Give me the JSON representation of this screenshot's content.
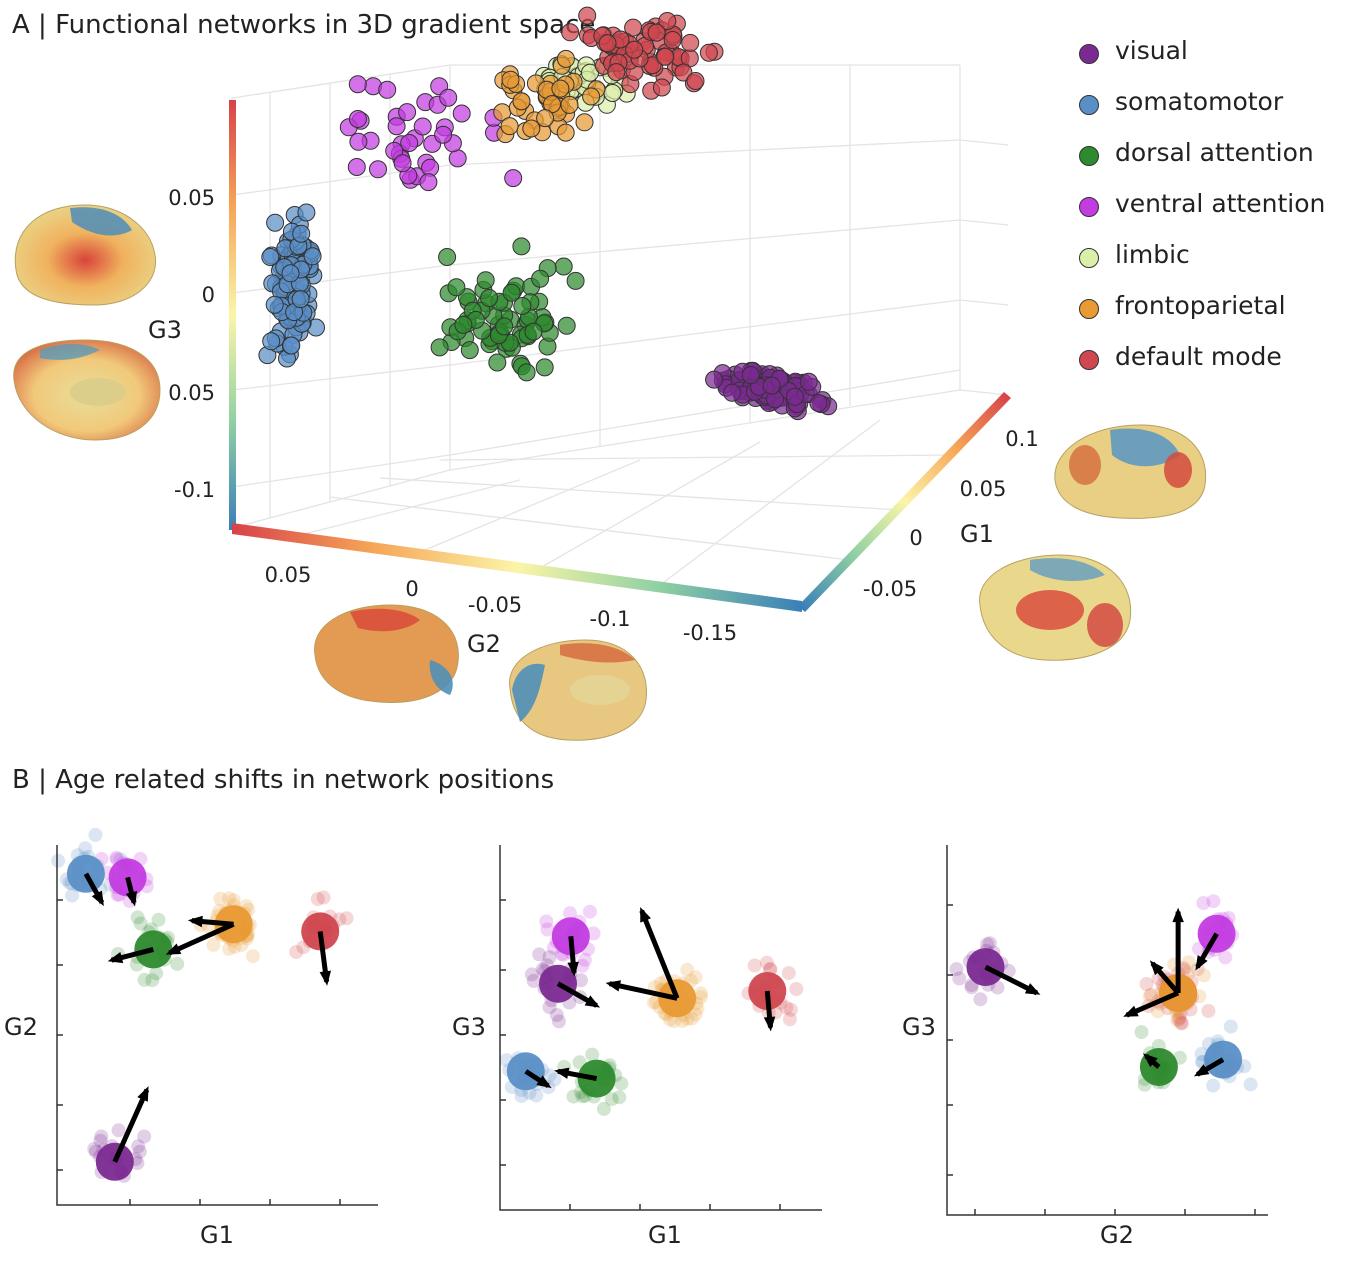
{
  "panel_a": {
    "title": "A |  Functional networks in 3D gradient space"
  },
  "panel_b": {
    "title": "B |  Age related shifts in network positions"
  },
  "legend": [
    {
      "label": "visual",
      "color": "#7b2a91"
    },
    {
      "label": "somatomotor",
      "color": "#5a8fc6"
    },
    {
      "label": "dorsal attention",
      "color": "#2e8a2e"
    },
    {
      "label": "ventral attention",
      "color": "#c23ce0"
    },
    {
      "label": "limbic",
      "color": "#dcefaa"
    },
    {
      "label": "frontoparietal",
      "color": "#e89a34"
    },
    {
      "label": "default mode",
      "color": "#d0474f"
    }
  ],
  "chart_data": [
    {
      "type": "scatter",
      "projection": "3d",
      "title": "Functional networks in 3D gradient space",
      "axes": {
        "G1": {
          "label": "G1",
          "ticks": [
            "0.1",
            "0.05",
            "0",
            "-0.05"
          ],
          "range": [
            -0.08,
            0.12
          ],
          "colormap": "Spectral"
        },
        "G2": {
          "label": "G2",
          "ticks": [
            "0.05",
            "0",
            "-0.05",
            "-0.1",
            "-0.15"
          ],
          "range": [
            0.08,
            -0.19
          ],
          "colormap": "Spectral"
        },
        "G3": {
          "label": "G3",
          "ticks": [
            "0.05",
            "0",
            "0.05",
            "-0.1"
          ],
          "range": [
            -0.13,
            0.1
          ],
          "colormap": "Spectral"
        }
      },
      "series": [
        {
          "name": "visual",
          "centroid": {
            "G1": -0.07,
            "G2": -0.17,
            "G3": -0.02
          },
          "n_points": 110
        },
        {
          "name": "somatomotor",
          "centroid": {
            "G1": -0.04,
            "G2": 0.07,
            "G3": -0.02
          },
          "n_points": 120
        },
        {
          "name": "dorsal attention",
          "centroid": {
            "G1": -0.01,
            "G2": -0.02,
            "G3": -0.04
          },
          "n_points": 70
        },
        {
          "name": "ventral attention",
          "centroid": {
            "G1": 0.0,
            "G2": 0.03,
            "G3": 0.05
          },
          "n_points": 40
        },
        {
          "name": "limbic",
          "centroid": {
            "G1": 0.03,
            "G2": -0.03,
            "G3": 0.07
          },
          "n_points": 40
        },
        {
          "name": "frontoparietal",
          "centroid": {
            "G1": 0.04,
            "G2": -0.01,
            "G3": 0.05
          },
          "n_points": 45
        },
        {
          "name": "default mode",
          "centroid": {
            "G1": 0.08,
            "G2": -0.04,
            "G3": 0.06
          },
          "n_points": 70
        }
      ],
      "grid": true,
      "legend": "right"
    },
    {
      "type": "scatter",
      "title": "",
      "xlabel": "G1",
      "ylabel": "G2",
      "xlim": [
        0,
        1
      ],
      "ylim": [
        0,
        1
      ],
      "network_shifts": [
        {
          "name": "somatomotor",
          "from": [
            0.09,
            0.92
          ],
          "to": [
            0.14,
            0.84
          ]
        },
        {
          "name": "ventral attention",
          "from": [
            0.22,
            0.91
          ],
          "to": [
            0.24,
            0.84
          ]
        },
        {
          "name": "frontoparietal",
          "from": [
            0.55,
            0.78
          ],
          "to": [
            0.42,
            0.79
          ]
        },
        {
          "name": "dorsal attention",
          "from": [
            0.3,
            0.71
          ],
          "to": [
            0.17,
            0.68
          ]
        },
        {
          "name": "frontoparietal",
          "from": [
            0.55,
            0.78
          ],
          "to": [
            0.35,
            0.7
          ]
        },
        {
          "name": "default mode",
          "from": [
            0.82,
            0.76
          ],
          "to": [
            0.84,
            0.62
          ]
        },
        {
          "name": "visual",
          "from": [
            0.18,
            0.12
          ],
          "to": [
            0.28,
            0.32
          ]
        }
      ]
    },
    {
      "type": "scatter",
      "title": "",
      "xlabel": "G1",
      "ylabel": "G3",
      "xlim": [
        0,
        1
      ],
      "ylim": [
        0,
        1
      ],
      "network_shifts": [
        {
          "name": "ventral attention",
          "from": [
            0.22,
            0.75
          ],
          "to": [
            0.23,
            0.65
          ]
        },
        {
          "name": "visual",
          "from": [
            0.18,
            0.62
          ],
          "to": [
            0.3,
            0.56
          ]
        },
        {
          "name": "frontoparietal",
          "from": [
            0.55,
            0.58
          ],
          "to": [
            0.44,
            0.82
          ]
        },
        {
          "name": "frontoparietal",
          "from": [
            0.55,
            0.58
          ],
          "to": [
            0.34,
            0.62
          ]
        },
        {
          "name": "default mode",
          "from": [
            0.83,
            0.6
          ],
          "to": [
            0.84,
            0.5
          ]
        },
        {
          "name": "somatomotor",
          "from": [
            0.08,
            0.38
          ],
          "to": [
            0.15,
            0.34
          ]
        },
        {
          "name": "dorsal attention",
          "from": [
            0.3,
            0.36
          ],
          "to": [
            0.18,
            0.38
          ]
        }
      ]
    },
    {
      "type": "scatter",
      "title": "",
      "xlabel": "G2",
      "ylabel": "G3",
      "xlim": [
        0,
        1
      ],
      "ylim": [
        0,
        1
      ],
      "network_shifts": [
        {
          "name": "visual",
          "from": [
            0.12,
            0.67
          ],
          "to": [
            0.28,
            0.6
          ]
        },
        {
          "name": "ventral attention",
          "from": [
            0.84,
            0.76
          ],
          "to": [
            0.78,
            0.67
          ]
        },
        {
          "name": "default mode",
          "from": [
            0.72,
            0.6
          ],
          "to": [
            0.72,
            0.82
          ]
        },
        {
          "name": "default mode",
          "from": [
            0.72,
            0.6
          ],
          "to": [
            0.56,
            0.54
          ]
        },
        {
          "name": "frontoparietal",
          "from": [
            0.72,
            0.6
          ],
          "to": [
            0.64,
            0.68
          ]
        },
        {
          "name": "dorsal attention",
          "from": [
            0.66,
            0.4
          ],
          "to": [
            0.62,
            0.43
          ]
        },
        {
          "name": "somatomotor",
          "from": [
            0.86,
            0.42
          ],
          "to": [
            0.78,
            0.38
          ]
        }
      ]
    }
  ]
}
